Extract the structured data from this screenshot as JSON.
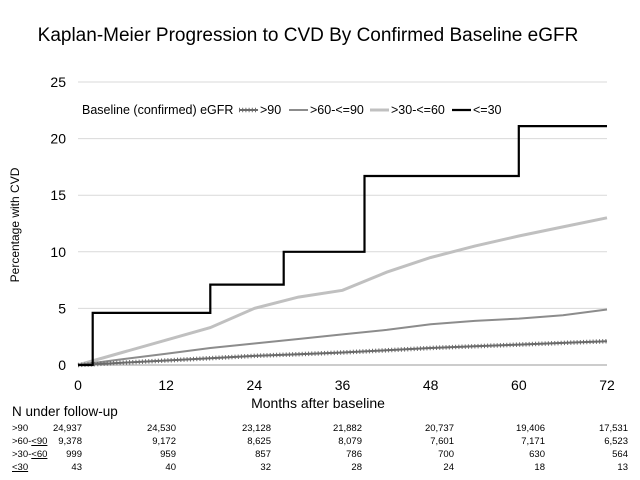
{
  "chart_data": {
    "type": "line",
    "title": "Kaplan-Meier Progression to CVD By Confirmed Baseline eGFR",
    "xlabel": "Months after baseline",
    "ylabel": "Percentage with CVD",
    "xlim": [
      0,
      72
    ],
    "ylim": [
      0,
      25
    ],
    "xticks": [
      0,
      12,
      24,
      36,
      48,
      60,
      72
    ],
    "yticks": [
      0,
      5,
      10,
      15,
      20,
      25
    ],
    "grid": "horizontal",
    "legend_title": "Baseline (confirmed) eGFR",
    "legend_position": "top",
    "series": [
      {
        "name": ">90",
        "color": "#6b6b6b",
        "marker": "dense-ticks",
        "x": [
          0,
          6,
          12,
          18,
          24,
          30,
          36,
          42,
          48,
          54,
          60,
          66,
          72
        ],
        "y": [
          0,
          0.2,
          0.4,
          0.6,
          0.8,
          0.95,
          1.1,
          1.3,
          1.5,
          1.65,
          1.8,
          1.95,
          2.1
        ]
      },
      {
        "name": ">60-<=90",
        "color": "#8c8c8c",
        "x": [
          0,
          6,
          12,
          18,
          24,
          30,
          36,
          42,
          48,
          54,
          60,
          66,
          72
        ],
        "y": [
          0,
          0.5,
          1.0,
          1.5,
          1.9,
          2.3,
          2.7,
          3.1,
          3.6,
          3.9,
          4.1,
          4.4,
          4.9
        ]
      },
      {
        "name": ">30-<=60",
        "color": "#c0c0c0",
        "x": [
          0,
          6,
          12,
          18,
          24,
          30,
          36,
          42,
          48,
          54,
          60,
          66,
          72
        ],
        "y": [
          0,
          1.1,
          2.2,
          3.3,
          5.0,
          6.0,
          6.6,
          8.2,
          9.5,
          10.5,
          11.4,
          12.2,
          13.0
        ]
      },
      {
        "name": "<=30",
        "color": "#000000",
        "step": true,
        "x": [
          0,
          2,
          2,
          18,
          18,
          28,
          28,
          39,
          39,
          60,
          60,
          72
        ],
        "y": [
          0,
          0,
          4.6,
          4.6,
          7.1,
          7.1,
          10.0,
          10.0,
          16.7,
          16.7,
          21.1,
          21.1
        ]
      }
    ],
    "at_risk": {
      "title": "N under follow-up",
      "times": [
        0,
        12,
        24,
        36,
        48,
        60,
        72
      ],
      "rows": [
        {
          "label": ">90",
          "values": [
            "24,937",
            "24,530",
            "23,128",
            "21,882",
            "20,737",
            "19,406",
            "17,531"
          ]
        },
        {
          "label_prefix": ">60-",
          "label_main": "<90",
          "values": [
            "9,378",
            "9,172",
            "8,625",
            "8,079",
            "7,601",
            "7,171",
            "6,523"
          ]
        },
        {
          "label_prefix": ">30-",
          "label_main": "<60",
          "values": [
            "999",
            "959",
            "857",
            "786",
            "700",
            "630",
            "564"
          ]
        },
        {
          "label_prefix": "",
          "label_main": "<30",
          "values": [
            "43",
            "40",
            "32",
            "28",
            "24",
            "18",
            "13"
          ]
        }
      ]
    }
  }
}
